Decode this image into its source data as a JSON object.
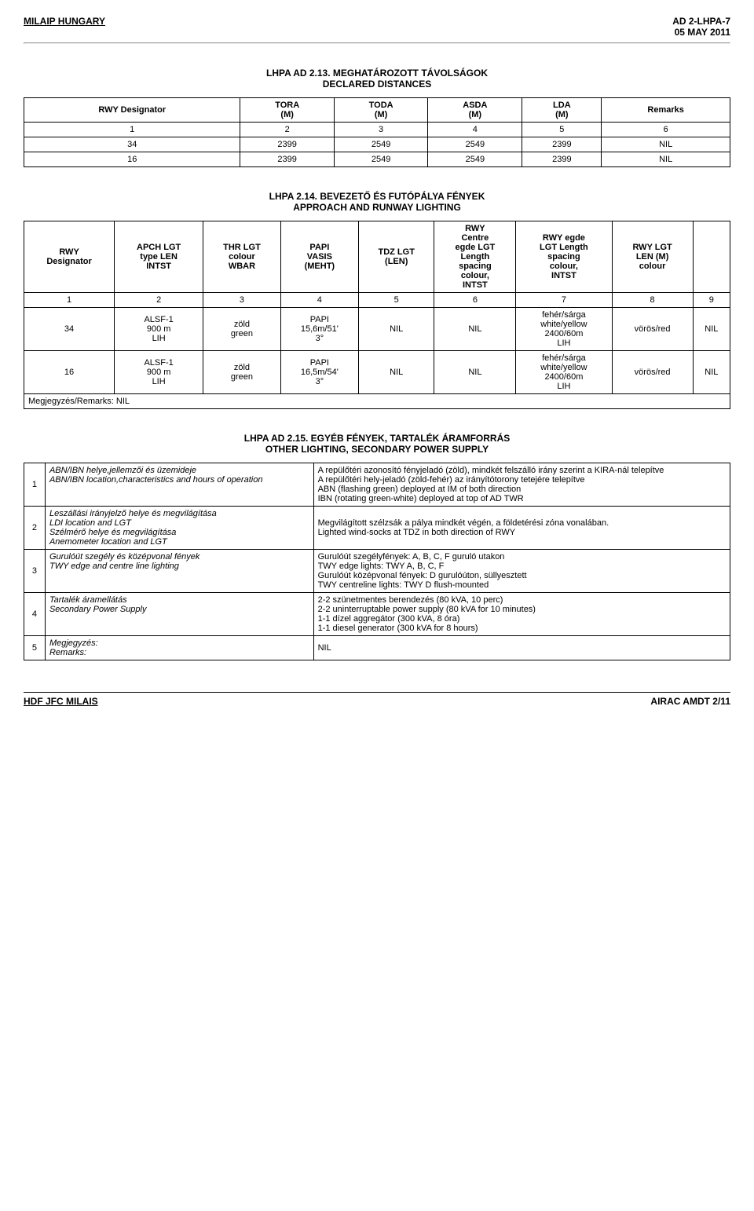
{
  "header": {
    "left": "MILAIP HUNGARY",
    "right_top": "AD 2-LHPA-7",
    "right_bottom": "05 MAY 2011"
  },
  "section213": {
    "title": "LHPA AD 2.13. MEGHATÁROZOTT TÁVOLSÁGOK\nDECLARED DISTANCES",
    "columns": [
      "RWY Designator",
      "TORA\n(M)",
      "TODA\n(M)",
      "ASDA\n(M)",
      "LDA\n(M)",
      "Remarks"
    ],
    "num_row": [
      "1",
      "2",
      "3",
      "4",
      "5",
      "6"
    ],
    "rows": [
      [
        "34",
        "2399",
        "2549",
        "2549",
        "2399",
        "NIL"
      ],
      [
        "16",
        "2399",
        "2549",
        "2549",
        "2399",
        "NIL"
      ]
    ]
  },
  "section214": {
    "title": "LHPA 2.14. BEVEZETŐ ÉS FUTÓPÁLYA FÉNYEK\nAPPROACH AND RUNWAY LIGHTING",
    "columns": [
      "RWY\nDesignator",
      "APCH LGT\ntype LEN\nINTST",
      "THR LGT\ncolour\nWBAR",
      "PAPI\nVASIS\n(MEHT)",
      "TDZ LGT\n(LEN)",
      "RWY\nCentre\negde LGT\nLength\nspacing\ncolour,\nINTST",
      "RWY egde\nLGT Length\nspacing\ncolour,\nINTST",
      "RWY LGT\nLEN (M)\ncolour",
      ""
    ],
    "num_row": [
      "1",
      "2",
      "3",
      "4",
      "5",
      "6",
      "7",
      "8",
      "9"
    ],
    "rows": [
      [
        "34",
        "ALSF-1\n900 m\nLIH",
        "zöld\ngreen",
        "PAPI\n15,6m/51'\n3°",
        "NIL",
        "NIL",
        "fehér/sárga\nwhite/yellow\n2400/60m\nLIH",
        "vörös/red",
        "NIL"
      ],
      [
        "16",
        "ALSF-1\n900 m\nLIH",
        "zöld\ngreen",
        "PAPI\n16,5m/54'\n3°",
        "NIL",
        "NIL",
        "fehér/sárga\nwhite/yellow\n2400/60m\nLIH",
        "vörös/red",
        "NIL"
      ]
    ],
    "note": "Megjegyzés/Remarks: NIL"
  },
  "section215": {
    "title": "LHPA AD 2.15. EGYÉB FÉNYEK, TARTALÉK ÁRAMFORRÁS\nOTHER LIGHTING, SECONDARY POWER SUPPLY",
    "rows": [
      {
        "n": "1",
        "label": "ABN/IBN helye,jellemzői és üzemideje\nABN/IBN location,characteristics and hours of operation",
        "val": "A repülőtéri azonosító fényjeladó (zöld), mindkét felszálló irány szerint a KIRA-nál telepítve\nA repülőtéri hely-jeladó (zöld-fehér) az irányítótorony tetejére telepítve\nABN (flashing green) deployed at IM of both direction\nIBN (rotating green-white) deployed at top of AD TWR"
      },
      {
        "n": "2",
        "label": "Leszállási irányjelző helye és megvilágítása\nLDI location and LGT\nSzélmérő helye és megvilágítása\nAnemometer location and LGT",
        "val": "Megvilágított szélzsák a pálya mindkét végén, a földetérési zóna vonalában.\nLighted wind-socks at TDZ in both direction of RWY"
      },
      {
        "n": "3",
        "label": "Gurulóút szegély és középvonal fények\nTWY edge and centre line lighting",
        "val": "Gurulóút szegélyfények: A, B, C, F guruló utakon\nTWY edge lights: TWY A, B, C, F\nGurulóút középvonal fények: D gurulóúton, süllyesztett\nTWY centreline lights: TWY D flush-mounted"
      },
      {
        "n": "4",
        "label": "Tartalék áramellátás\nSecondary Power Supply",
        "val": "2-2 szünetmentes berendezés (80 kVA, 10 perc)\n2-2 uninterruptable power supply (80 kVA for 10 minutes)\n1-1 dízel aggregátor (300 kVA, 8 óra)\n1-1 diesel generator (300 kVA for 8 hours)"
      },
      {
        "n": "5",
        "label": "Megjegyzés:\nRemarks:",
        "val": "NIL"
      }
    ]
  },
  "footer": {
    "left": "HDF JFC MILAIS",
    "right": "AIRAC AMDT 2/11"
  }
}
